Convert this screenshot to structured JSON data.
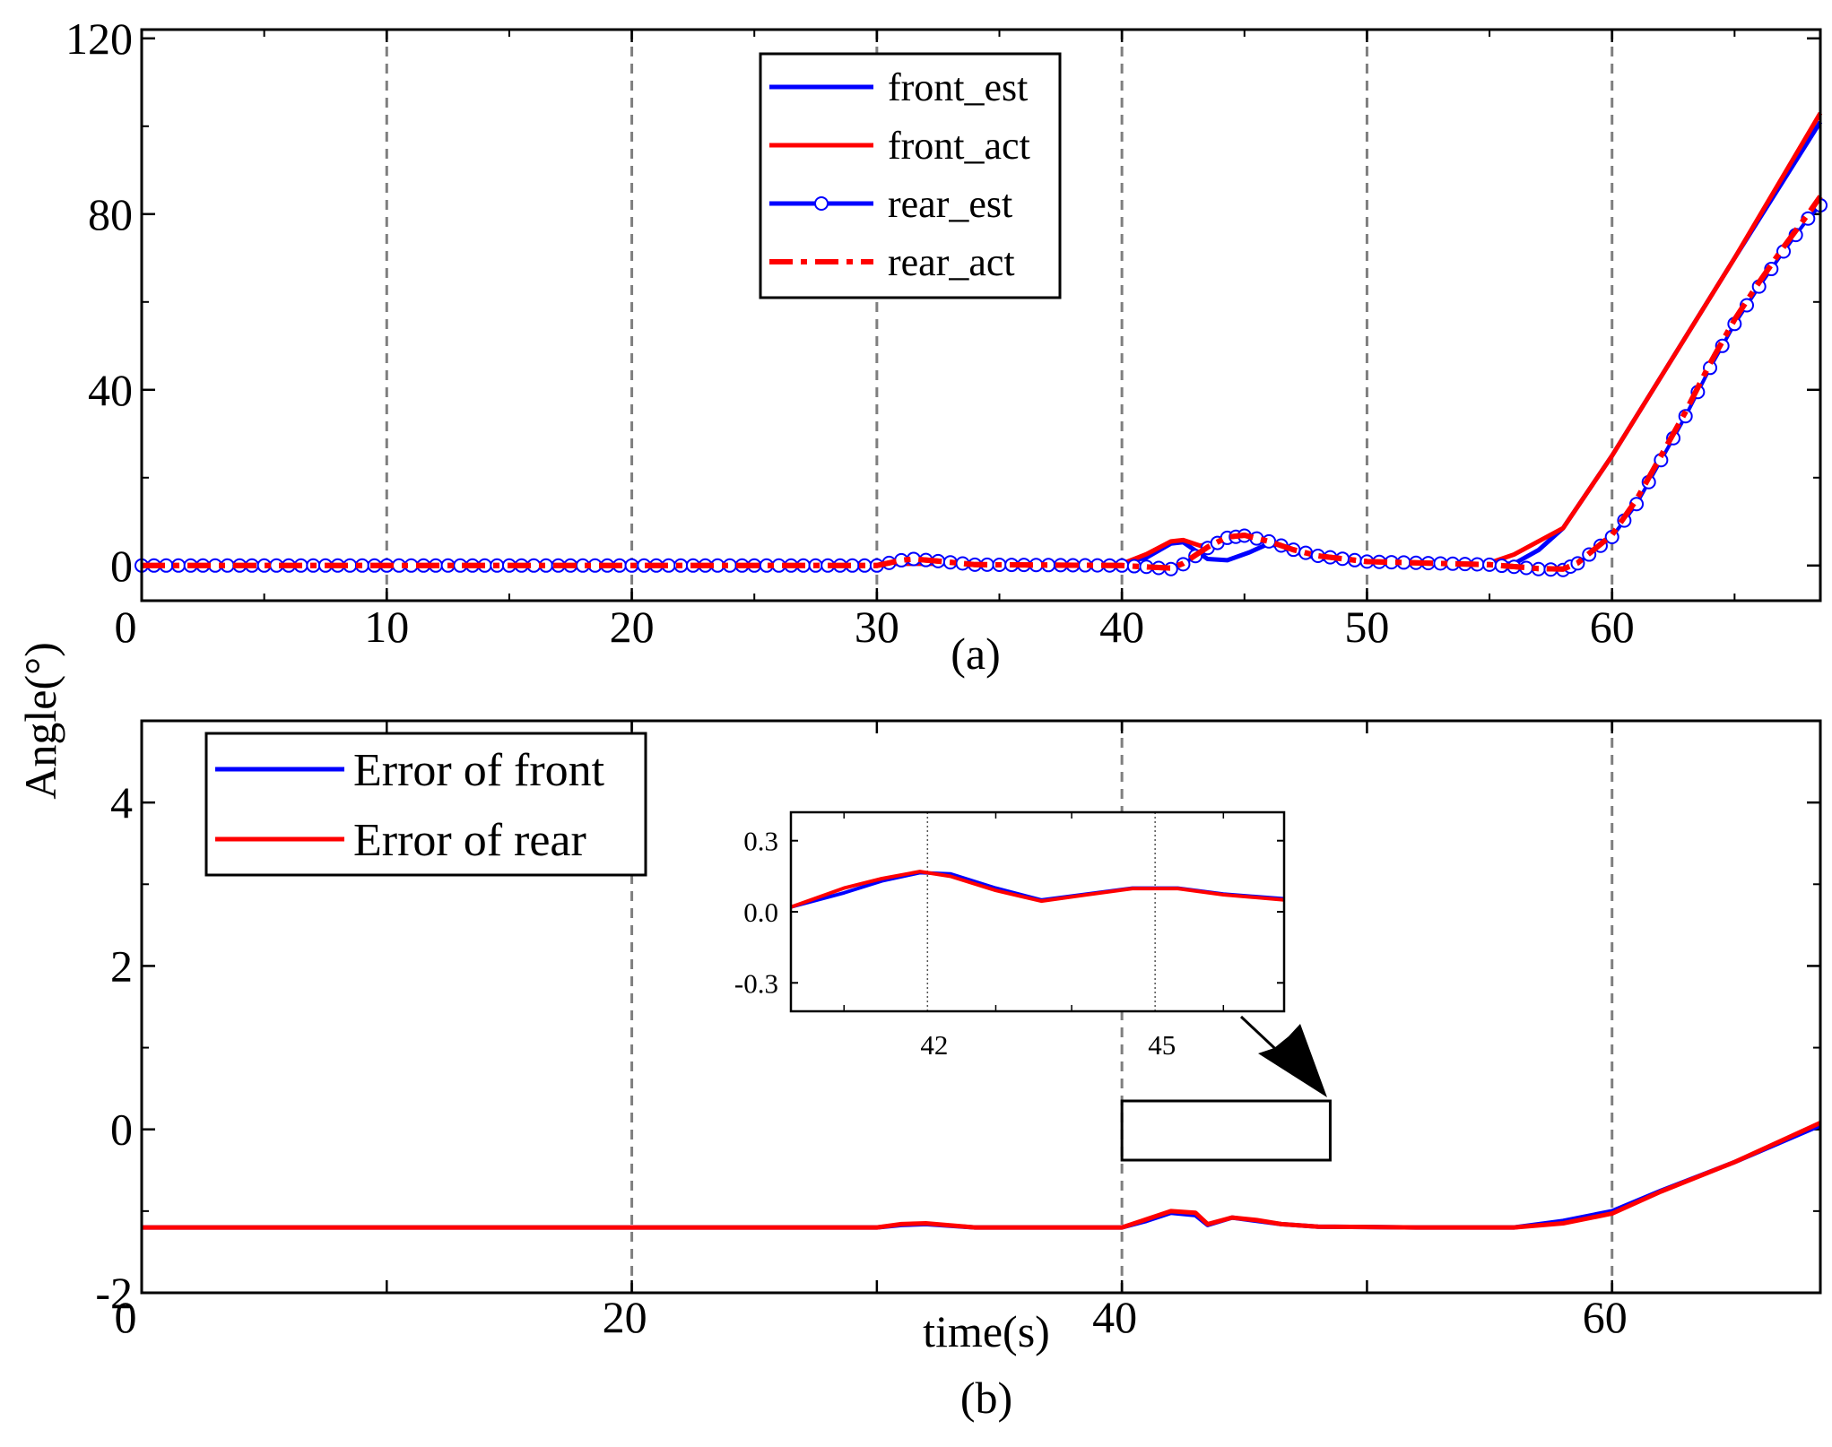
{
  "colors": {
    "blue": "#0000ff",
    "red": "#ff0000",
    "grid": "#7f7f7f",
    "axis": "#000000"
  },
  "ylabel": "Angle(°)",
  "chart_data": [
    {
      "id": "a",
      "type": "line",
      "caption": "(a)",
      "xlim": [
        0,
        68.5
      ],
      "ylim": [
        -8,
        122
      ],
      "xticks": [
        0,
        10,
        20,
        30,
        40,
        50,
        60
      ],
      "xtick_labels": [
        "0",
        "10",
        "20",
        "30",
        "40",
        "50",
        "60"
      ],
      "yticks": [
        0,
        40,
        80,
        120
      ],
      "ytick_labels": [
        "0",
        "40",
        "80",
        "120"
      ],
      "grid_x": [
        10,
        20,
        30,
        40,
        50,
        60
      ],
      "legend": {
        "position": "top-center",
        "entries": [
          {
            "label": "front_est",
            "color": "#0000ff",
            "style": "solid"
          },
          {
            "label": "front_act",
            "color": "#ff0000",
            "style": "solid"
          },
          {
            "label": "rear_est",
            "color": "#0000ff",
            "style": "solid-circle"
          },
          {
            "label": "rear_act",
            "color": "#ff0000",
            "style": "dashdot"
          }
        ]
      },
      "series": [
        {
          "name": "front_est",
          "color": "#0000ff",
          "style": "solid",
          "points": [
            [
              0,
              0.4
            ],
            [
              40,
              0.4
            ],
            [
              41,
              1.8
            ],
            [
              42,
              5.0
            ],
            [
              42.5,
              5.3
            ],
            [
              43.5,
              1.5
            ],
            [
              44.3,
              1.2
            ],
            [
              45.2,
              3.0
            ],
            [
              46,
              5.0
            ],
            [
              47,
              3.2
            ],
            [
              48,
              1.6
            ],
            [
              50,
              0.7
            ],
            [
              55,
              0.4
            ],
            [
              56,
              0.4
            ],
            [
              57,
              3.5
            ],
            [
              58,
              8.5
            ],
            [
              60,
              25
            ],
            [
              62,
              43
            ],
            [
              65,
              70
            ],
            [
              68.5,
              101
            ]
          ]
        },
        {
          "name": "front_act",
          "color": "#ff0000",
          "style": "solid",
          "points": [
            [
              0,
              0.4
            ],
            [
              40,
              0.4
            ],
            [
              41,
              2.6
            ],
            [
              42,
              5.5
            ],
            [
              42.5,
              5.8
            ],
            [
              43.2,
              4.5
            ],
            [
              44,
              5.5
            ],
            [
              45,
              6.8
            ],
            [
              46,
              5.5
            ],
            [
              47,
              3.5
            ],
            [
              48,
              1.8
            ],
            [
              50,
              0.8
            ],
            [
              55,
              0.6
            ],
            [
              56,
              2.5
            ],
            [
              58,
              8.5
            ],
            [
              60,
              25
            ],
            [
              62,
              43
            ],
            [
              65,
              70
            ],
            [
              68.5,
              103
            ]
          ]
        },
        {
          "name": "rear_est",
          "color": "#0000ff",
          "style": "solid-circle",
          "points": [
            [
              0,
              0
            ],
            [
              30,
              0
            ],
            [
              31,
              1.2
            ],
            [
              31.5,
              1.5
            ],
            [
              32.5,
              1.0
            ],
            [
              34,
              0.2
            ],
            [
              40,
              0
            ],
            [
              41,
              -0.3
            ],
            [
              42,
              -0.8
            ],
            [
              42.5,
              0.3
            ],
            [
              43.5,
              4.0
            ],
            [
              44.3,
              6.3
            ],
            [
              45,
              6.8
            ],
            [
              46,
              5.5
            ],
            [
              47,
              3.6
            ],
            [
              48,
              2.2
            ],
            [
              50,
              0.9
            ],
            [
              55,
              0.2
            ],
            [
              57,
              -0.8
            ],
            [
              58,
              -1.0
            ],
            [
              58.6,
              0.5
            ],
            [
              60,
              6.5
            ],
            [
              61,
              14
            ],
            [
              62,
              24
            ],
            [
              63,
              34
            ],
            [
              64,
              45
            ],
            [
              65,
              55
            ],
            [
              66,
              63.5
            ],
            [
              67,
              71.5
            ],
            [
              68,
              79
            ],
            [
              68.5,
              82
            ]
          ]
        },
        {
          "name": "rear_act",
          "color": "#ff0000",
          "style": "dashdot",
          "points": [
            [
              0,
              0
            ],
            [
              30,
              0
            ],
            [
              31,
              1.2
            ],
            [
              31.5,
              1.5
            ],
            [
              32.5,
              1.0
            ],
            [
              34,
              0.2
            ],
            [
              40,
              0
            ],
            [
              41,
              -0.3
            ],
            [
              42,
              -0.6
            ],
            [
              42.5,
              0.5
            ],
            [
              43.5,
              4.2
            ],
            [
              44.3,
              6.5
            ],
            [
              45,
              6.9
            ],
            [
              46,
              5.5
            ],
            [
              47,
              3.6
            ],
            [
              48,
              2.2
            ],
            [
              50,
              0.9
            ],
            [
              55,
              0.2
            ],
            [
              57,
              -0.7
            ],
            [
              58,
              -0.8
            ],
            [
              58.6,
              0.6
            ],
            [
              60,
              7
            ],
            [
              61,
              15
            ],
            [
              62,
              25
            ],
            [
              63,
              35
            ],
            [
              64,
              46
            ],
            [
              65,
              56
            ],
            [
              66,
              64.5
            ],
            [
              67,
              72.5
            ],
            [
              68,
              80
            ],
            [
              68.5,
              84
            ]
          ]
        }
      ]
    },
    {
      "id": "b",
      "type": "line",
      "caption": "(b)",
      "xlabel": "time(s)",
      "xlim": [
        0,
        68.5
      ],
      "ylim": [
        -2,
        5
      ],
      "xticks": [
        0,
        20,
        40,
        60
      ],
      "xtick_labels": [
        "0",
        "20",
        "40",
        "60"
      ],
      "minor_xticks": [
        10,
        30,
        50
      ],
      "yticks": [
        -2,
        0,
        2,
        4
      ],
      "ytick_labels": [
        "-2",
        "0",
        "2",
        "4"
      ],
      "grid_x": [
        20,
        40,
        60
      ],
      "legend": {
        "position": "top-left",
        "entries": [
          {
            "label": "Error of front",
            "color": "#0000ff",
            "style": "solid"
          },
          {
            "label": "Error of rear",
            "color": "#ff0000",
            "style": "solid"
          }
        ]
      },
      "series": [
        {
          "name": "Error of front",
          "color": "#0000ff",
          "points": [
            [
              0,
              -1.2
            ],
            [
              30,
              -1.2
            ],
            [
              31,
              -1.17
            ],
            [
              32,
              -1.16
            ],
            [
              34,
              -1.2
            ],
            [
              40,
              -1.2
            ],
            [
              41,
              -1.12
            ],
            [
              42,
              -1.02
            ],
            [
              43,
              -1.05
            ],
            [
              43.5,
              -1.17
            ],
            [
              44.5,
              -1.08
            ],
            [
              45.5,
              -1.12
            ],
            [
              46.5,
              -1.16
            ],
            [
              48,
              -1.19
            ],
            [
              52,
              -1.2
            ],
            [
              56,
              -1.2
            ],
            [
              58,
              -1.12
            ],
            [
              60,
              -1.0
            ],
            [
              62,
              -0.75
            ],
            [
              65,
              -0.4
            ],
            [
              68.5,
              0.05
            ]
          ]
        },
        {
          "name": "Error of rear",
          "color": "#ff0000",
          "points": [
            [
              0,
              -1.2
            ],
            [
              30,
              -1.2
            ],
            [
              31,
              -1.16
            ],
            [
              32,
              -1.15
            ],
            [
              34,
              -1.2
            ],
            [
              40,
              -1.2
            ],
            [
              41,
              -1.1
            ],
            [
              42,
              -1.0
            ],
            [
              43,
              -1.02
            ],
            [
              43.5,
              -1.16
            ],
            [
              44.5,
              -1.08
            ],
            [
              45.5,
              -1.11
            ],
            [
              46.5,
              -1.16
            ],
            [
              48,
              -1.19
            ],
            [
              52,
              -1.2
            ],
            [
              56,
              -1.2
            ],
            [
              58,
              -1.15
            ],
            [
              60,
              -1.03
            ],
            [
              62,
              -0.76
            ],
            [
              65,
              -0.4
            ],
            [
              68.5,
              0.08
            ]
          ]
        }
      ],
      "zoom_box": {
        "xlim": [
          40,
          48.5
        ]
      },
      "inset": {
        "xlim": [
          40.3,
          46.8
        ],
        "ylim": [
          -0.42,
          0.42
        ],
        "xticks": [
          42,
          45
        ],
        "xtick_labels": [
          "42",
          "45"
        ],
        "yticks": [
          0.3,
          0.0,
          -0.3
        ],
        "ytick_labels": [
          "0.3",
          "0.0",
          "-0.3"
        ],
        "dotted_x": [
          42.1,
          45.1
        ],
        "series": [
          {
            "name": "Error of front",
            "color": "#0000ff",
            "points": [
              [
                40.3,
                0.02
              ],
              [
                41,
                0.08
              ],
              [
                41.5,
                0.13
              ],
              [
                42,
                0.165
              ],
              [
                42.4,
                0.16
              ],
              [
                43,
                0.1
              ],
              [
                43.6,
                0.05
              ],
              [
                44.2,
                0.075
              ],
              [
                44.8,
                0.1
              ],
              [
                45.4,
                0.1
              ],
              [
                46,
                0.075
              ],
              [
                46.8,
                0.055
              ]
            ]
          },
          {
            "name": "Error of rear",
            "color": "#ff0000",
            "points": [
              [
                40.3,
                0.02
              ],
              [
                41,
                0.1
              ],
              [
                41.5,
                0.14
              ],
              [
                42,
                0.17
              ],
              [
                42.4,
                0.15
              ],
              [
                43,
                0.09
              ],
              [
                43.6,
                0.045
              ],
              [
                44.2,
                0.072
              ],
              [
                44.8,
                0.098
              ],
              [
                45.4,
                0.098
              ],
              [
                46,
                0.072
              ],
              [
                46.8,
                0.05
              ]
            ]
          }
        ]
      }
    }
  ]
}
